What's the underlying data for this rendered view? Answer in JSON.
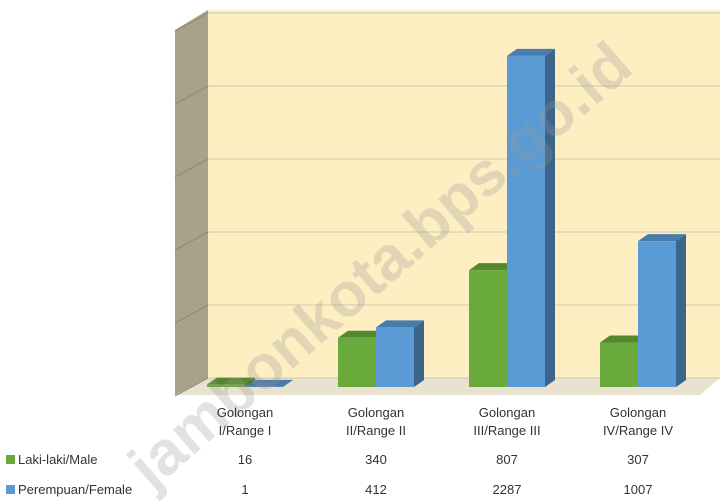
{
  "chart_data": {
    "type": "bar3d",
    "categories": [
      "Golongan I/Range I",
      "Golongan II/Range II",
      "Golongan III/Range III",
      "Golongan IV/Range IV"
    ],
    "series": [
      {
        "name": "Laki-laki/Male",
        "color": "#6aa93b",
        "values": [
          16,
          340,
          807,
          307
        ]
      },
      {
        "name": "Perempuan/Female",
        "color": "#5b9bd5",
        "values": [
          1,
          412,
          2287,
          1007
        ]
      }
    ],
    "ylim": [
      0,
      2500
    ],
    "yticks": [
      0,
      500,
      1000,
      1500,
      2000,
      2500
    ],
    "grid": true,
    "watermark": "jambonkota.bps.go.id"
  }
}
